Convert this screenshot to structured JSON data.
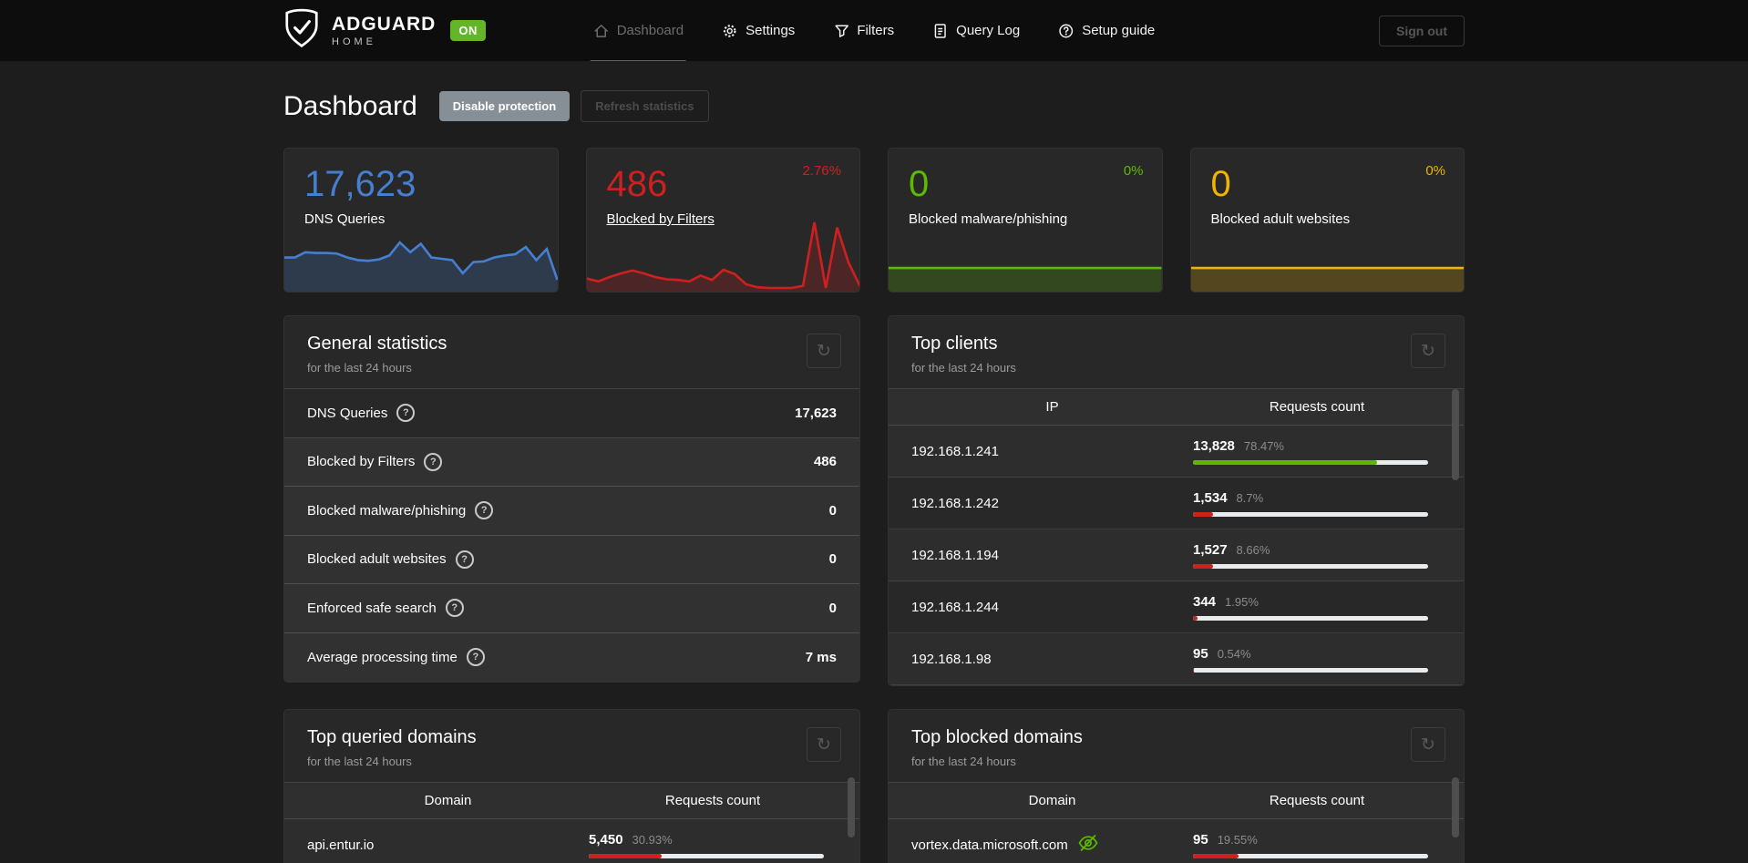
{
  "navbar": {
    "brand": {
      "name": "ADGUARD",
      "sub": "HOME",
      "status": "ON"
    },
    "items": [
      {
        "label": "Dashboard"
      },
      {
        "label": "Settings"
      },
      {
        "label": "Filters"
      },
      {
        "label": "Query Log"
      },
      {
        "label": "Setup guide"
      }
    ],
    "signout": "Sign out"
  },
  "page": {
    "title": "Dashboard",
    "disable_button": "Disable protection",
    "refresh_button": "Refresh statistics"
  },
  "colors": {
    "blue": "#467fcf",
    "red": "#cd201f",
    "green": "#5eba00",
    "yellow": "#f0b400"
  },
  "stat_cards": [
    {
      "value": "17,623",
      "label": "DNS Queries",
      "percent": "",
      "color": "#467fcf",
      "chart": [
        52,
        52,
        60,
        59,
        59,
        58,
        52,
        48,
        47,
        49,
        55,
        75,
        60,
        73,
        52,
        50,
        48,
        28,
        45,
        46,
        52,
        55,
        57,
        68,
        48,
        65,
        18
      ]
    },
    {
      "value": "486",
      "label": "Blocked by Filters",
      "percent": "2.76%",
      "color": "#cd201f",
      "chart": [
        18,
        14,
        20,
        25,
        29,
        25,
        20,
        17,
        16,
        14,
        22,
        16,
        30,
        24,
        10,
        6,
        5,
        5,
        5,
        8,
        95,
        5,
        88,
        40,
        8
      ]
    },
    {
      "value": "0",
      "label": "Blocked malware/phishing",
      "percent": "0%",
      "color": "#5eba00",
      "chart": [
        36,
        36
      ]
    },
    {
      "value": "0",
      "label": "Blocked adult websites",
      "percent": "0%",
      "color": "#f0b400",
      "chart": [
        36,
        36
      ]
    }
  ],
  "general_stats": {
    "title": "General statistics",
    "subtitle": "for the last 24 hours",
    "rows": [
      {
        "label": "DNS Queries",
        "value": "17,623"
      },
      {
        "label": "Blocked by Filters",
        "value": "486"
      },
      {
        "label": "Blocked malware/phishing",
        "value": "0"
      },
      {
        "label": "Blocked adult websites",
        "value": "0"
      },
      {
        "label": "Enforced safe search",
        "value": "0"
      },
      {
        "label": "Average processing time",
        "value": "7 ms"
      }
    ]
  },
  "top_clients": {
    "title": "Top clients",
    "subtitle": "for the last 24 hours",
    "col_ip": "IP",
    "col_count": "Requests count",
    "rows": [
      {
        "ip": "192.168.1.241",
        "count": "13,828",
        "percent": "78.47%",
        "fill": 78.47,
        "color": "#5eba00"
      },
      {
        "ip": "192.168.1.242",
        "count": "1,534",
        "percent": "8.7%",
        "fill": 8.7,
        "color": "#cd201f"
      },
      {
        "ip": "192.168.1.194",
        "count": "1,527",
        "percent": "8.66%",
        "fill": 8.66,
        "color": "#cd201f"
      },
      {
        "ip": "192.168.1.244",
        "count": "344",
        "percent": "1.95%",
        "fill": 1.95,
        "color": "#cd201f"
      },
      {
        "ip": "192.168.1.98",
        "count": "95",
        "percent": "0.54%",
        "fill": 0.54,
        "color": "#cd201f"
      }
    ]
  },
  "top_queried": {
    "title": "Top queried domains",
    "subtitle": "for the last 24 hours",
    "col_domain": "Domain",
    "col_count": "Requests count",
    "rows": [
      {
        "domain": "api.entur.io",
        "count": "5,450",
        "percent": "30.93%",
        "fill": 30.93,
        "color": "#cd201f"
      }
    ]
  },
  "top_blocked": {
    "title": "Top blocked domains",
    "subtitle": "for the last 24 hours",
    "col_domain": "Domain",
    "col_count": "Requests count",
    "rows": [
      {
        "domain": "vortex.data.microsoft.com",
        "count": "95",
        "percent": "19.55%",
        "fill": 19.55,
        "color": "#cd201f"
      }
    ]
  },
  "icons": {
    "refresh": "↻"
  }
}
